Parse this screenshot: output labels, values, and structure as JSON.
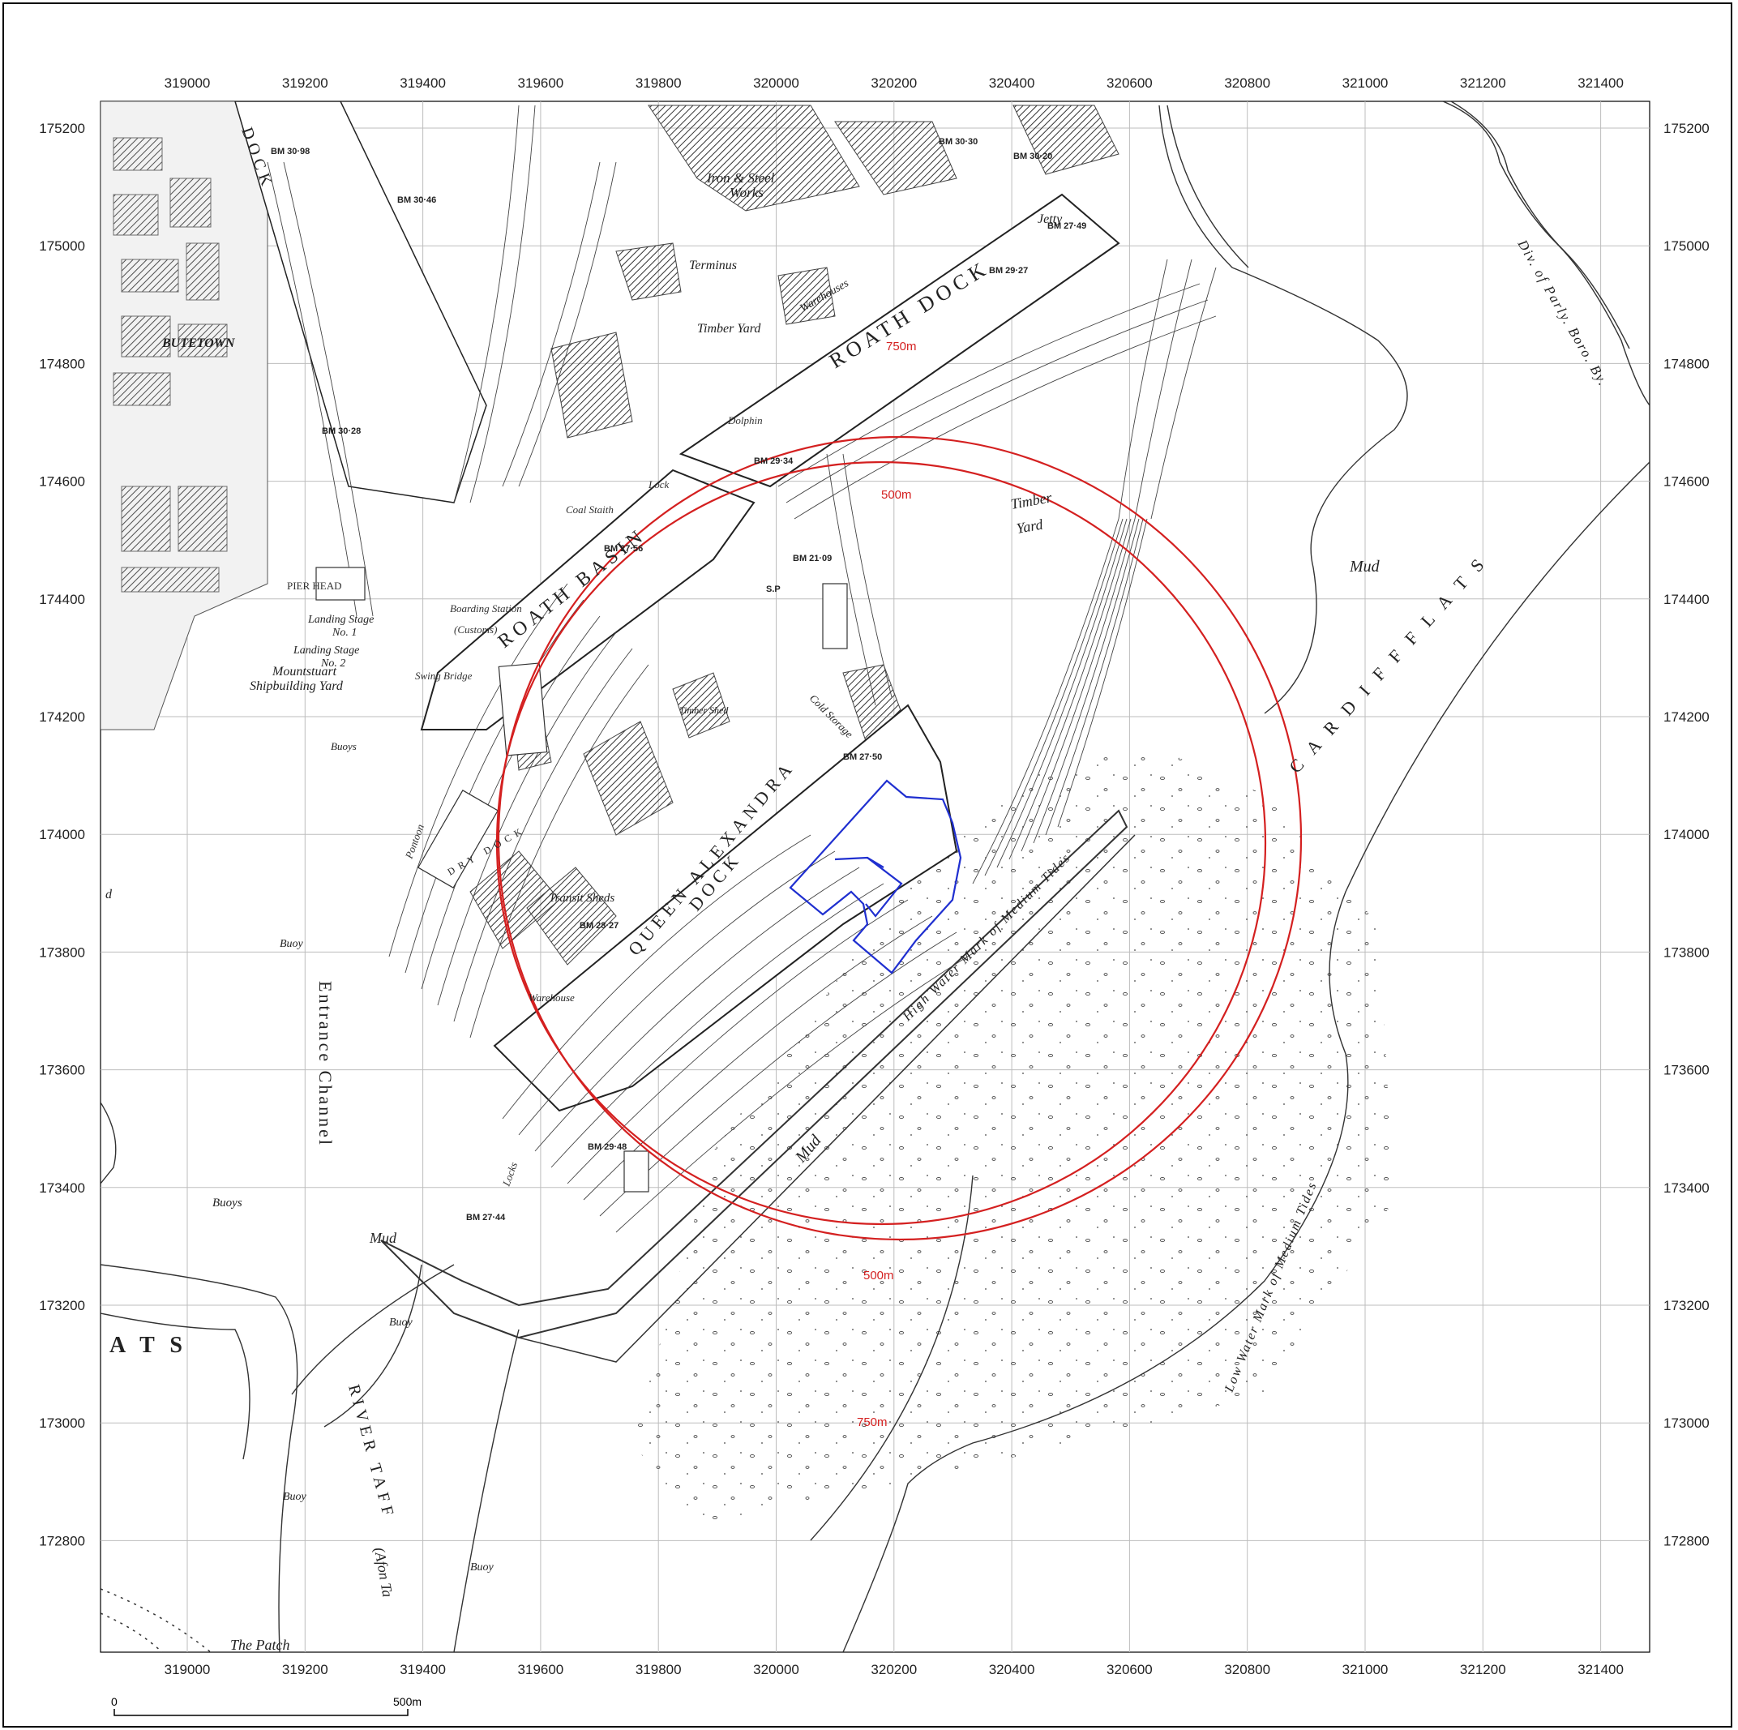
{
  "map": {
    "x_ticks": [
      "319000",
      "319200",
      "319400",
      "319600",
      "319800",
      "320000",
      "320200",
      "320400",
      "320600",
      "320800",
      "321000",
      "321200",
      "321400"
    ],
    "y_ticks": [
      "175200",
      "175000",
      "174800",
      "174600",
      "174400",
      "174200",
      "174000",
      "173800",
      "173600",
      "173400",
      "173200",
      "173000",
      "172800"
    ],
    "rings": [
      {
        "label": "500m",
        "color": "#d42020"
      },
      {
        "label": "750m",
        "color": "#d42020"
      }
    ],
    "site_outline_color": "#1f2fd0",
    "labels": {
      "roath_dock": "ROATH DOCK",
      "roath_basin": "ROATH BASIN",
      "queen_alexandra_dock": "QUEEN ALEXANDRA",
      "queen_alexandra_dock_2": "DOCK",
      "cardiff_flats": "C A R D I F F   F L A T S",
      "timber_yard_1": "Timber",
      "timber_yard_2": "Yard",
      "timber_yard_left": "Timber Yard",
      "iron_steel": "Iron & Steel",
      "works": "Works",
      "terminus": "Terminus",
      "warehouses": "Warehouses",
      "jetty": "Jetty",
      "mud_1": "Mud",
      "mud_2": "Mud",
      "mud_3": "Mud",
      "transit_sheds": "Transit Sheds",
      "warehouse": "Warehouse",
      "cold_storage": "Cold Storage",
      "timber_shed": "Timber Shed",
      "dry_dock": "DRY DOCK",
      "entrance_channel": "Entrance Channel",
      "river_taff": "RIVER TAFF",
      "afon_taf": "(Afon Ta",
      "high_water": "High Water Mark of Medium Tides",
      "low_water": "Low Water Mark of Medium Tides",
      "div_parly": "Div. of Parly. Boro. By.",
      "buoys_1": "Buoys",
      "buoys_2": "Buoys",
      "buoy_1": "Buoy",
      "buoy_2": "Buoy",
      "buoy_3": "Buoy",
      "buoy_4": "Buoy",
      "the_patch": "The Patch",
      "ats": "A T S",
      "landing_stage_1": "Landing Stage",
      "landing_stage_1b": "No. 1",
      "landing_stage_2": "Landing Stage",
      "landing_stage_2b": "No. 2",
      "mountstuart": "Mountstuart",
      "shipbuilding": "Shipbuilding Yard",
      "pier_head": "PIER HEAD",
      "dolphin": "Dolphin",
      "coal_staith": "Coal Staith",
      "swing_bridge": "Swing Bridge",
      "boarding_station": "Boarding Station",
      "customs": "(Customs)",
      "dock_top": "DOCK",
      "bute_town": "BUTETOWN",
      "pontoon": "Pontoon",
      "lock": "Lock",
      "locks": "Locks",
      "d_label": "d",
      "bm_1": "BM 29·34",
      "bm_2": "BM 27·50",
      "bm_3": "BM 29·48",
      "bm_4": "BM 28·27",
      "bm_5": "BM 27·56",
      "bm_6": "BM 29·27",
      "bm_7": "BM 27·49",
      "bm_8": "BM 30·46",
      "bm_9": "BM 30·30",
      "bm_10": "BM 30·20",
      "bm_11": "BM 21·09",
      "bm_12": "BM 27·44",
      "bm_13": "BM 30·28",
      "bm_14": "BM 30·98",
      "sp": "S.P"
    },
    "scale_bar": {
      "start": "0",
      "end": "500m"
    }
  }
}
